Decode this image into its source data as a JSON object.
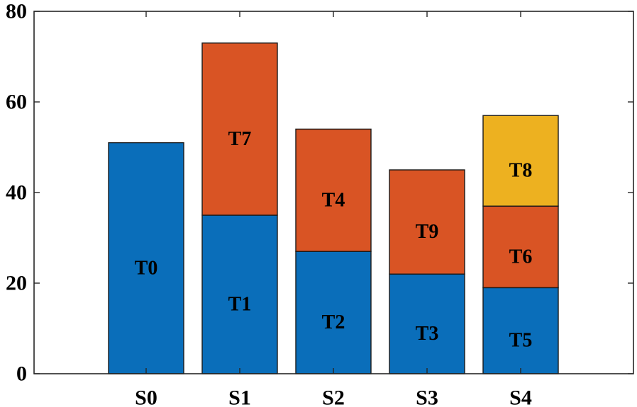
{
  "chart_data": {
    "type": "bar",
    "stacked": true,
    "title": "",
    "xlabel": "",
    "ylabel": "",
    "ylim": [
      0,
      80
    ],
    "yticks": [
      0,
      20,
      40,
      60,
      80
    ],
    "categories": [
      "S0",
      "S1",
      "S2",
      "S3",
      "S4"
    ],
    "colors": {
      "level1": "#0a6eba",
      "level2": "#d95424",
      "level3": "#edb120"
    },
    "segments": [
      {
        "category": "S0",
        "label": "T0",
        "value": 51,
        "level": 1
      },
      {
        "category": "S1",
        "label": "T1",
        "value": 35,
        "level": 1
      },
      {
        "category": "S1",
        "label": "T7",
        "value": 38,
        "level": 2
      },
      {
        "category": "S2",
        "label": "T2",
        "value": 27,
        "level": 1
      },
      {
        "category": "S2",
        "label": "T4",
        "value": 27,
        "level": 2
      },
      {
        "category": "S3",
        "label": "T3",
        "value": 22,
        "level": 1
      },
      {
        "category": "S3",
        "label": "T9",
        "value": 23,
        "level": 2
      },
      {
        "category": "S4",
        "label": "T5",
        "value": 19,
        "level": 1
      },
      {
        "category": "S4",
        "label": "T6",
        "value": 18,
        "level": 2
      },
      {
        "category": "S4",
        "label": "T8",
        "value": 20,
        "level": 3
      }
    ]
  }
}
